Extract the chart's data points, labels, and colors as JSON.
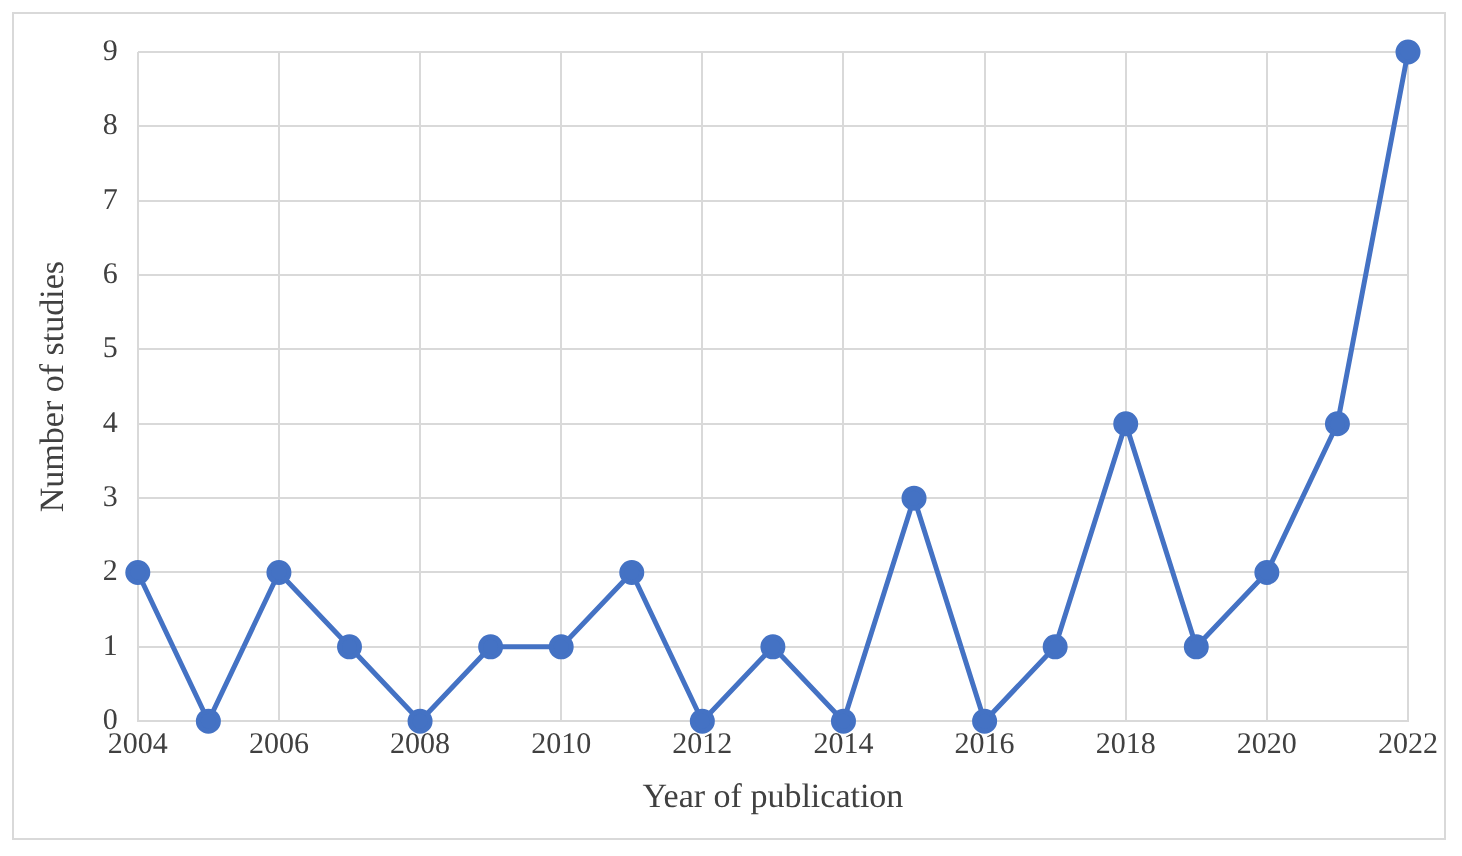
{
  "chart_data": {
    "type": "line",
    "xlabel": "Year of publication",
    "ylabel": "Number of studies",
    "x": [
      2004,
      2005,
      2006,
      2007,
      2008,
      2009,
      2010,
      2011,
      2012,
      2013,
      2014,
      2015,
      2016,
      2017,
      2018,
      2019,
      2020,
      2021,
      2022
    ],
    "series": [
      {
        "color": "#4472c4",
        "values": [
          2,
          0,
          2,
          1,
          0,
          1,
          1,
          2,
          0,
          1,
          0,
          3,
          0,
          1,
          4,
          1,
          2,
          4,
          9
        ]
      }
    ],
    "xlim": [
      2004,
      2022
    ],
    "xticks": [
      2004,
      2006,
      2008,
      2010,
      2012,
      2014,
      2016,
      2018,
      2020,
      2022
    ],
    "ylim": [
      0,
      9
    ],
    "yticks": [
      0,
      1,
      2,
      3,
      4,
      5,
      6,
      7,
      8,
      9
    ],
    "grid": true,
    "legend": false,
    "marker": "circle",
    "line_style": "solid"
  }
}
